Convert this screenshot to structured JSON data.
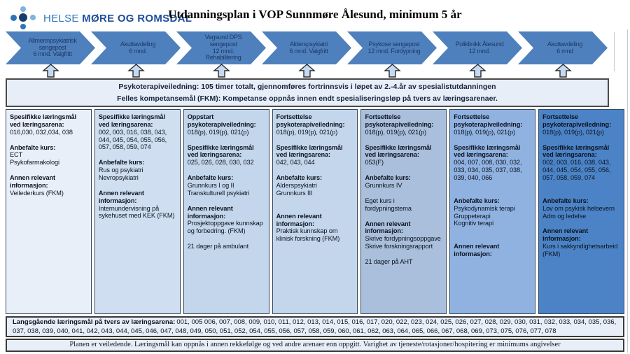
{
  "header": {
    "logo": {
      "text_light": "HELSE",
      "text_bold": "MØRE OG ROMSDAL"
    },
    "title": "Utdanningsplan i VOP Sunnmøre Ålesund, minimum 5 år"
  },
  "timeline": {
    "stages": [
      {
        "lines": [
          "Allmennpsykiatrisk",
          "sengepost",
          "6 mnd. Valgfritt"
        ]
      },
      {
        "lines": [
          "Akuttavdeling",
          "6 mnd."
        ]
      },
      {
        "lines": [
          "Vegsund DPS",
          "sengepost",
          "12 mnd.",
          "Rehabilitering"
        ]
      },
      {
        "lines": [
          "Alderspsykiatri",
          "6 mnd. Valgfritt"
        ]
      },
      {
        "lines": [
          "Psykose sengepost",
          "12 mnd. Fordypning"
        ]
      },
      {
        "lines": [
          "Poliklinikk Ålesund",
          "12 mnd."
        ]
      },
      {
        "lines": [
          "Akuttavdeling",
          "6 mnd"
        ]
      }
    ]
  },
  "banner": {
    "line1": "Psykoterapiveiledning: 105 timer totalt, gjennomføres fortrinnsvis i løpet av 2.-4.år av spesialistutdanningen",
    "line2": "Felles kompetansemål (FKM): Kompetanse oppnås innen endt spesialiseringsløp på tvers av læringsarenaer."
  },
  "columns": [
    {
      "bg": "#e9eff9",
      "blocks": [
        {
          "h": "Spesifikke læringsmål ved læringsarena:",
          "lines": [
            "016,030, 032,034, 038"
          ]
        },
        {
          "h": "Anbefalte kurs:",
          "lines": [
            "ECT",
            "Psykofarmakologi"
          ]
        },
        {
          "h": "Annen relevant informasjon:",
          "lines": [
            "Veilederkurs (FKM)"
          ]
        }
      ]
    },
    {
      "bg": "#cfdff1",
      "blocks": [
        {
          "h": "Spesifikke læringsmål ved læringsarena:",
          "lines": [
            "002, 003, 016, 038, 043, 044, 045, 054, 055, 056, 057, 058, 059, 074"
          ]
        },
        {
          "h": "Anbefalte kurs:",
          "lines": [
            "Rus og psykiatri",
            "Nevropsykiatri"
          ]
        },
        {
          "h": "Annen relevant informasjon:",
          "lines": [
            "Internundervisning på sykehuset med KEK (FKM)"
          ]
        }
      ]
    },
    {
      "bg": "#c3d6eb",
      "blocks": [
        {
          "h": "Oppstart psykoterapiveiledning:",
          "lines": [
            "018(p), 019(p), 021(p)"
          ]
        },
        {
          "h": "Spesifikke læringsmål ved læringsarena:",
          "lines": [
            "025, 026, 028, 030, 032"
          ]
        },
        {
          "h": "Anbefalte kurs:",
          "lines": [
            "Grunnkurs I og II",
            "Transkulturell psykiatri"
          ]
        },
        {
          "h": "Annen relevant informasjon:",
          "lines": [
            "Prosjektoppgave kunnskap og forbedring. (FKM)"
          ]
        },
        {
          "h": "",
          "lines": [
            "21 dager på ambulant"
          ]
        }
      ]
    },
    {
      "bg": "#c3d6eb",
      "blocks": [
        {
          "h": "Fortsettelse psykoterapiveiledning:",
          "lines": [
            "018(p), 019(p), 021(p)"
          ]
        },
        {
          "h": "Spesifikke læringsmål ved læringsarena:",
          "lines": [
            "042, 043, 044"
          ]
        },
        {
          "h": "Anbefalte kurs:",
          "lines": [
            "Alderspsykiatri",
            "Grunnkurs III"
          ]
        },
        {
          "h": "Annen relevant informasjon:",
          "g2": true,
          "lines": [
            "Praktisk kunnskap om klinisk forskning (FKM)"
          ]
        }
      ]
    },
    {
      "bg": "#a9bfdb",
      "blocks": [
        {
          "h": "Fortsettelse psykoterapiveiledning:",
          "lines": [
            "018(p), 019(p), 021(p)"
          ]
        },
        {
          "h": "Spesifikke læringsmål ved læringsarena:",
          "lines": [
            "053(F)"
          ]
        },
        {
          "h": "Anbefalte kurs:",
          "lines": [
            "Grunnkurs IV"
          ]
        },
        {
          "h": "",
          "lines": [
            "Eget kurs i",
            "fordypningstema"
          ]
        },
        {
          "h": "Annen relevant informasjon:",
          "lines": [
            "Skrive fordypningsoppgave",
            "Skrive forskningsrapport"
          ]
        },
        {
          "h": "",
          "lines": [
            "21 dager på AHT"
          ]
        }
      ]
    },
    {
      "bg": "#90b2e0",
      "blocks": [
        {
          "h": "Fortsettelse psykoterapiveiledning:",
          "lines": [
            "018(p), 019(p), 021(p)"
          ]
        },
        {
          "h": "Spesifikke læringsmål ved læringsarena:",
          "lines": [
            "004, 007, 008, 030, 032, 033, 034, 035, 037, 038, 039, 040, 066"
          ]
        },
        {
          "h": "Anbefalte kurs:",
          "g2": true,
          "lines": [
            "Psykodynamisk terapi",
            "Gruppeterapi",
            "Kognitiv terapi"
          ]
        },
        {
          "h": "Annen relevant informasjon:",
          "g2": true,
          "lines": []
        }
      ]
    },
    {
      "bg": "#4b83c6",
      "blocks": [
        {
          "h": "Fortsettelse psykoterapiveiledning:",
          "lines": [
            "018(p), 019(p), 021(p)"
          ]
        },
        {
          "h": "Spesifikke læringsmål ved læringsarena:",
          "lines": [
            "002, 003, 016, 038, 043, 044, 045, 054, 055, 056, 057, 058, 059, 074"
          ]
        },
        {
          "h": "Anbefalte kurs:",
          "g2": true,
          "lines": [
            "Lov om psykisk helsevern",
            "Adm og ledelse"
          ]
        },
        {
          "h": "Annen relevant informasjon:",
          "lines": [
            "Kurs i sakkyndighetsarbeid (FKM)"
          ]
        }
      ]
    }
  ],
  "longitudinal": {
    "label": "Langsgående læringsmål på tvers av læringsarena:",
    "numbers": "001, 005 006, 007, 008, 009, 010, 011, 012, 013, 014, 015, 016, 017, 020, 022, 023, 024, 025, 026, 027, 028, 029, 030, 031, 032, 033, 034, 035, 036, 037, 038, 039, 040, 041, 042, 043, 044, 045, 046, 047, 048, 049, 050, 051, 052, 054, 055, 056, 057, 058, 059, 060, 061, 062, 063, 064, 065, 066, 067, 068, 069, 073, 075, 076, 077, 078"
  },
  "footer": {
    "note": "Planen er veiledende. Læringsmål kan oppnås i annen rekkefølge og ved andre arenaer enn oppgitt. Varighet av tjeneste/rotasjoner/hospitering er minimums angivelser"
  },
  "colors": {
    "chevron_fill": "#4e80bd",
    "chevron_text": "#1f3864",
    "arrow_fill": "#c5d9f1",
    "arrow_stroke": "#2b2b2b",
    "panel_fill": "#e7eef8",
    "panel_border": "#3a3a3a"
  }
}
